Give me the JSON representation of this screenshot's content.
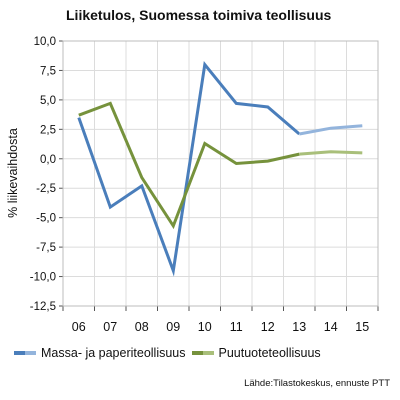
{
  "chart_data": {
    "type": "line",
    "title": "Liiketulos, Suomessa toimiva teollisuus",
    "ylabel": "% liikevaihdosta",
    "xlabel": "",
    "ylim": [
      -12.5,
      10.0
    ],
    "yticks": [
      10.0,
      7.5,
      5.0,
      2.5,
      0.0,
      -2.5,
      -5.0,
      -7.5,
      -10.0,
      -12.5
    ],
    "ytick_labels": [
      "10,0",
      "7,5",
      "5,0",
      "2,5",
      "0,0",
      "-2,5",
      "-5,0",
      "-7,5",
      "-10,0",
      "-12,5"
    ],
    "categories": [
      "06",
      "07",
      "08",
      "09",
      "10",
      "11",
      "12",
      "13",
      "14",
      "15"
    ],
    "forecast_from_index": 7,
    "grid": true,
    "legend_position": "bottom",
    "series": [
      {
        "name": "Massa- ja paperiteollisuus",
        "values": [
          3.5,
          -4.1,
          -2.3,
          -9.5,
          8.0,
          4.7,
          4.4,
          2.1,
          2.6,
          2.8
        ],
        "color": "#4a7ebb",
        "forecast_color": "#93b4dc"
      },
      {
        "name": "Puutuoteteollisuus",
        "values": [
          3.7,
          4.7,
          -1.6,
          -5.7,
          1.3,
          -0.4,
          -0.2,
          0.4,
          0.6,
          0.5
        ],
        "color": "#76923c",
        "forecast_color": "#a9bf7a"
      }
    ]
  },
  "source": "Lähde:Tilastokeskus, ennuste PTT"
}
